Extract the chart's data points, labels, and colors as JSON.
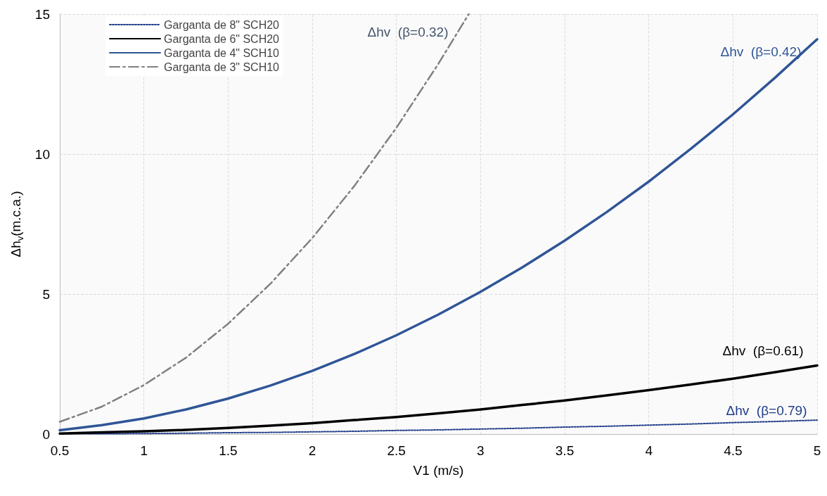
{
  "chart_data": {
    "type": "line",
    "xlabel": "V1 (m/s)",
    "ylabel": "Δh$_{v}$(m.c.a.)",
    "xlim": [
      0.5,
      5
    ],
    "xticks": [
      0.5,
      1,
      1.5,
      2,
      2.5,
      3,
      3.5,
      4,
      4.5,
      5
    ],
    "ylim": [
      0,
      15
    ],
    "yticks": [
      0,
      5,
      10,
      15
    ],
    "grid": true,
    "legend": "top left",
    "marker": "none",
    "x": [
      0.5,
      0.75,
      1,
      1.25,
      1.5,
      1.75,
      2,
      2.25,
      2.5,
      2.75,
      3,
      3.25,
      3.5,
      3.75,
      4,
      4.25,
      4.5,
      4.75,
      5
    ],
    "series": [
      {
        "name": "Garganta de 8\" SCH20",
        "color": "#1f3c88",
        "line_style": "dotted",
        "values": [
          0.01,
          0.01,
          0.02,
          0.03,
          0.05,
          0.06,
          0.08,
          0.1,
          0.13,
          0.15,
          0.18,
          0.21,
          0.25,
          0.28,
          0.32,
          0.36,
          0.41,
          0.45,
          0.5
        ]
      },
      {
        "name": "Garganta de 6\" SCH20",
        "color": "#000000",
        "line_style": "solid",
        "values": [
          0.02,
          0.06,
          0.1,
          0.15,
          0.22,
          0.3,
          0.39,
          0.5,
          0.61,
          0.74,
          0.88,
          1.04,
          1.2,
          1.38,
          1.57,
          1.77,
          1.98,
          2.21,
          2.45
        ]
      },
      {
        "name": "Garganta de 4\" SCH10",
        "color": "#2f5597",
        "line_style": "solid",
        "values": [
          0.14,
          0.32,
          0.56,
          0.88,
          1.27,
          1.73,
          2.26,
          2.86,
          3.53,
          4.27,
          5.08,
          5.96,
          6.91,
          7.93,
          9.02,
          10.19,
          11.42,
          12.73,
          14.1
        ]
      },
      {
        "name": "Garganta de 3\" SCH10",
        "color": "#808080",
        "line_style": "dashdot",
        "x": [
          0.5,
          0.75,
          1,
          1.25,
          1.5,
          1.75,
          2,
          2.25,
          2.5,
          2.75,
          2.93
        ],
        "values": [
          0.44,
          0.98,
          1.75,
          2.73,
          3.94,
          5.36,
          7.0,
          8.86,
          10.94,
          13.23,
          15.0
        ]
      }
    ],
    "annotations": [
      "Δhv  (β=0.79)",
      "Δhv  (β=0.61)",
      "Δhv  (β=0.42)",
      "Δhv  (β=0.32)"
    ]
  }
}
